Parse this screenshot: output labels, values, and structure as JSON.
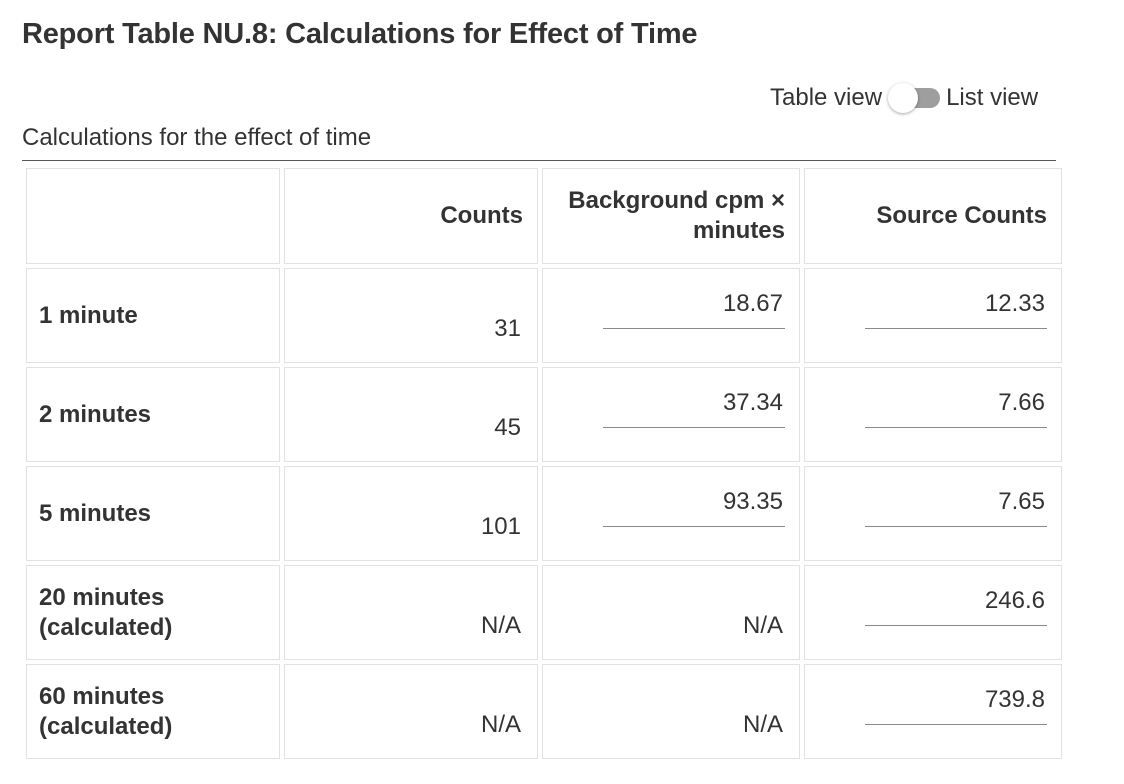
{
  "page": {
    "title": "Report Table NU.8: Calculations for Effect of Time"
  },
  "view_toggle": {
    "left_label": "Table view",
    "right_label": "List view",
    "state": "table-view"
  },
  "table": {
    "caption": "Calculations for the effect of time",
    "headers": [
      "",
      "Counts",
      "Background cpm × minutes",
      "Source Counts"
    ],
    "rows": [
      {
        "label": "1 minute",
        "counts": "31",
        "background": "18.67",
        "source": "12.33"
      },
      {
        "label": "2 minutes",
        "counts": "45",
        "background": "37.34",
        "source": "7.66"
      },
      {
        "label": "5 minutes",
        "counts": "101",
        "background": "93.35",
        "source": "7.65"
      },
      {
        "label": "20 minutes (calculated)",
        "counts": "N/A",
        "background": "N/A",
        "source": "246.6"
      },
      {
        "label": "60 minutes (calculated)",
        "counts": "N/A",
        "background": "N/A",
        "source": "739.8"
      }
    ]
  }
}
